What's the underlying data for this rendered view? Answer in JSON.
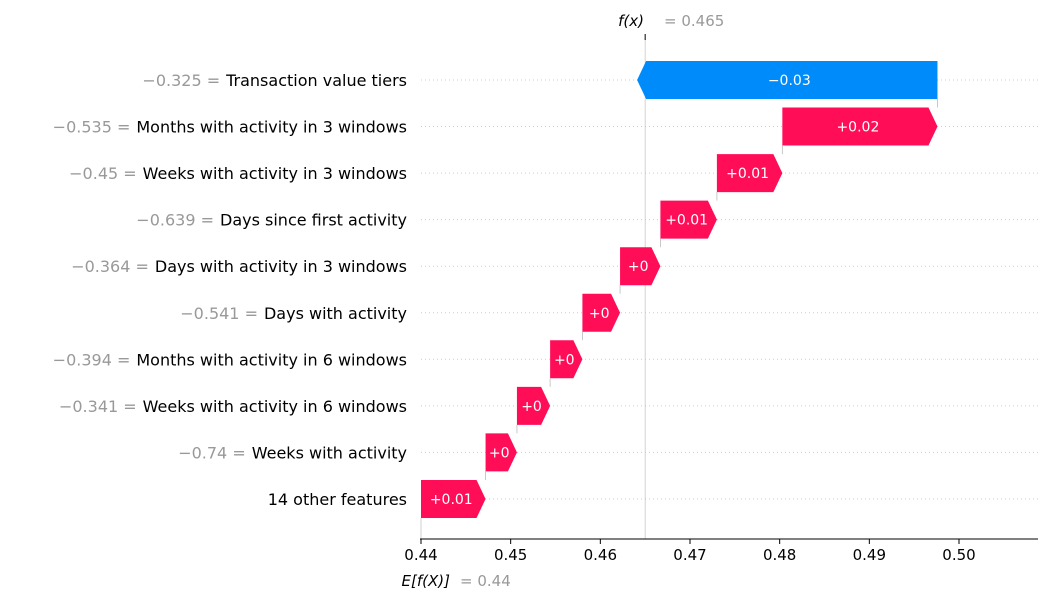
{
  "chart_data": {
    "type": "waterfall",
    "xlim": [
      0.44,
      0.5
    ],
    "ticks": [
      0.44,
      0.45,
      0.46,
      0.47,
      0.48,
      0.49,
      0.5
    ],
    "tick_labels": [
      "0.44",
      "0.45",
      "0.46",
      "0.47",
      "0.48",
      "0.49",
      "0.50"
    ],
    "fx": {
      "label": "f(x)",
      "value_text": "= 0.465",
      "value": 0.465
    },
    "expected": {
      "label": "E[f(X)]",
      "value_text": "= 0.44",
      "value": 0.44
    },
    "features": [
      {
        "value": "−0.325 =",
        "name": "Transaction value tiers",
        "contribution": -0.0335,
        "label": "−0.03"
      },
      {
        "value": "−0.535 =",
        "name": "Months with activity in 3 windows",
        "contribution": 0.0173,
        "label": "+0.02"
      },
      {
        "value": "−0.45 =",
        "name": "Weeks with activity in 3 windows",
        "contribution": 0.0073,
        "label": "+0.01"
      },
      {
        "value": "−0.639 =",
        "name": "Days since first activity",
        "contribution": 0.0063,
        "label": "+0.01"
      },
      {
        "value": "−0.364 =",
        "name": "Days with activity in 3 windows",
        "contribution": 0.0045,
        "label": "+0"
      },
      {
        "value": "−0.541 =",
        "name": "Days with activity",
        "contribution": 0.0042,
        "label": "+0"
      },
      {
        "value": "−0.394 =",
        "name": "Months with activity in 6 windows",
        "contribution": 0.0036,
        "label": "+0"
      },
      {
        "value": "−0.341 =",
        "name": "Weeks with activity in 6 windows",
        "contribution": 0.0037,
        "label": "+0"
      },
      {
        "value": "−0.74 =",
        "name": "Weeks with activity",
        "contribution": 0.0035,
        "label": "+0"
      },
      {
        "value": "",
        "name": "14 other features",
        "contribution": 0.0072,
        "label": "+0.01"
      }
    ],
    "colors": {
      "positive": "#ff0d57",
      "negative": "#008bfb",
      "muted": "#999999",
      "text": "#000000"
    }
  }
}
